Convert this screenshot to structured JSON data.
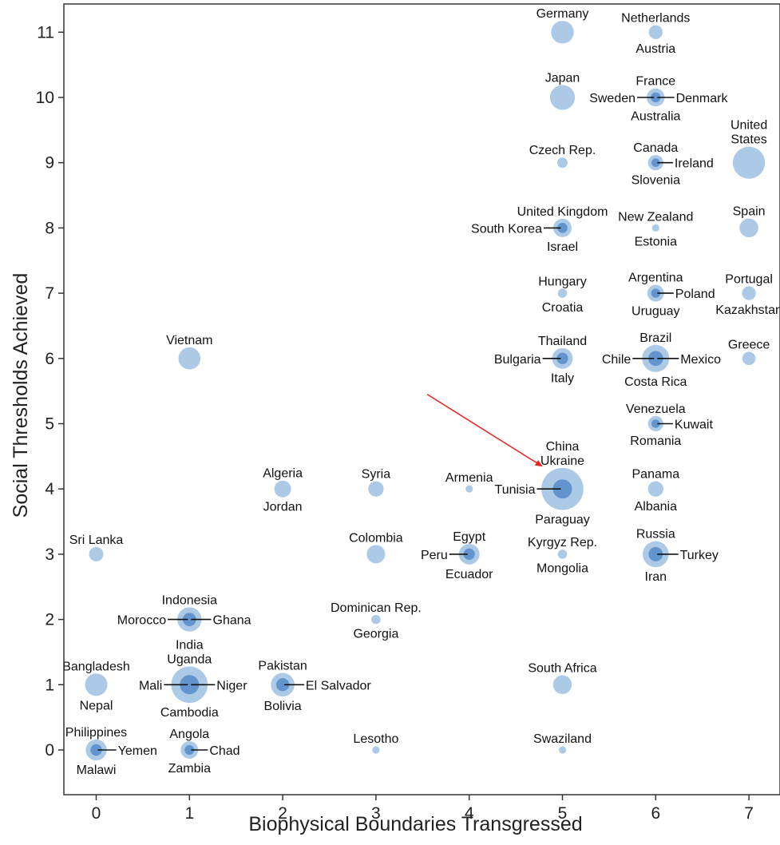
{
  "chart_data": {
    "type": "scatter",
    "title": "",
    "xlabel": "Biophysical Boundaries Transgressed",
    "ylabel": "Social Thresholds Achieved",
    "xlim": [
      -0.35,
      7.35
    ],
    "ylim": [
      -0.45,
      11.45
    ],
    "x_ticks": [
      0,
      1,
      2,
      3,
      4,
      5,
      6,
      7
    ],
    "y_ticks": [
      0,
      1,
      2,
      3,
      4,
      5,
      6,
      7,
      8,
      9,
      10,
      11
    ],
    "grid": false,
    "bubble_color": "#9dbfe2",
    "cluster_color": "#5a8fca",
    "arrow_color": "#e8211e",
    "annotation": {
      "type": "arrow",
      "from": [
        3.55,
        5.45
      ],
      "to": [
        4.78,
        4.35
      ]
    },
    "points": [
      {
        "x": 5,
        "y": 11,
        "size": 3.5,
        "labels": [
          {
            "text": "Germany",
            "pos": "above"
          }
        ]
      },
      {
        "x": 6,
        "y": 11,
        "size": 1.3,
        "labels": [
          {
            "text": "Netherlands",
            "pos": "above"
          },
          {
            "text": "Austria",
            "pos": "below"
          }
        ]
      },
      {
        "x": 5,
        "y": 10,
        "size": 4.2,
        "labels": [
          {
            "text": "Japan",
            "pos": "above"
          }
        ]
      },
      {
        "x": 6,
        "y": 10,
        "size": 2.2,
        "labels": [
          {
            "text": "France",
            "pos": "above"
          },
          {
            "text": "Sweden",
            "pos": "left"
          },
          {
            "text": "Denmark",
            "pos": "right"
          },
          {
            "text": "Australia",
            "pos": "below"
          }
        ]
      },
      {
        "x": 5,
        "y": 9,
        "size": 1.0,
        "labels": [
          {
            "text": "Czech Rep.",
            "pos": "above"
          }
        ]
      },
      {
        "x": 6,
        "y": 9,
        "size": 1.6,
        "labels": [
          {
            "text": "Canada",
            "pos": "above"
          },
          {
            "text": "Ireland",
            "pos": "right"
          },
          {
            "text": "Slovenia",
            "pos": "below"
          }
        ]
      },
      {
        "x": 7,
        "y": 9,
        "size": 7.0,
        "labels": [
          {
            "text": "United",
            "pos": "above2"
          },
          {
            "text": "States",
            "pos": "above"
          }
        ]
      },
      {
        "x": 5,
        "y": 8,
        "size": 2.3,
        "labels": [
          {
            "text": "United Kingdom",
            "pos": "above"
          },
          {
            "text": "South Korea",
            "pos": "left"
          },
          {
            "text": "Israel",
            "pos": "below"
          }
        ]
      },
      {
        "x": 6,
        "y": 8,
        "size": 0.5,
        "labels": [
          {
            "text": "New Zealand",
            "pos": "above"
          },
          {
            "text": "Estonia",
            "pos": "below"
          }
        ]
      },
      {
        "x": 7,
        "y": 8,
        "size": 2.4,
        "labels": [
          {
            "text": "Spain",
            "pos": "above"
          }
        ]
      },
      {
        "x": 5,
        "y": 7,
        "size": 0.8,
        "labels": [
          {
            "text": "Hungary",
            "pos": "above"
          },
          {
            "text": "Croatia",
            "pos": "below"
          }
        ]
      },
      {
        "x": 6,
        "y": 7,
        "size": 1.9,
        "labels": [
          {
            "text": "Argentina",
            "pos": "above"
          },
          {
            "text": "Poland",
            "pos": "right"
          },
          {
            "text": "Uruguay",
            "pos": "below"
          }
        ]
      },
      {
        "x": 7,
        "y": 7,
        "size": 1.3,
        "labels": [
          {
            "text": "Portugal",
            "pos": "above"
          },
          {
            "text": "Kazakhstan",
            "pos": "below"
          }
        ]
      },
      {
        "x": 1,
        "y": 6,
        "size": 3.3,
        "labels": [
          {
            "text": "Vietnam",
            "pos": "above"
          }
        ]
      },
      {
        "x": 5,
        "y": 6,
        "size": 2.9,
        "labels": [
          {
            "text": "Thailand",
            "pos": "above"
          },
          {
            "text": "Bulgaria",
            "pos": "left"
          },
          {
            "text": "Italy",
            "pos": "below"
          }
        ]
      },
      {
        "x": 6,
        "y": 6,
        "size": 5.0,
        "labels": [
          {
            "text": "Brazil",
            "pos": "above"
          },
          {
            "text": "Chile",
            "pos": "left"
          },
          {
            "text": "Mexico",
            "pos": "right"
          },
          {
            "text": "Costa Rica",
            "pos": "below"
          }
        ]
      },
      {
        "x": 7,
        "y": 6,
        "size": 1.2,
        "labels": [
          {
            "text": "Greece",
            "pos": "above"
          }
        ]
      },
      {
        "x": 6,
        "y": 5,
        "size": 1.6,
        "labels": [
          {
            "text": "Venezuela",
            "pos": "above"
          },
          {
            "text": "Kuwait",
            "pos": "right"
          },
          {
            "text": "Romania",
            "pos": "below"
          }
        ]
      },
      {
        "x": 2,
        "y": 4,
        "size": 1.9,
        "labels": [
          {
            "text": "Algeria",
            "pos": "above"
          },
          {
            "text": "Jordan",
            "pos": "below"
          }
        ]
      },
      {
        "x": 3,
        "y": 4,
        "size": 1.6,
        "labels": [
          {
            "text": "Syria",
            "pos": "above"
          }
        ]
      },
      {
        "x": 4,
        "y": 4,
        "size": 0.5,
        "labels": [
          {
            "text": "Armenia",
            "pos": "above"
          }
        ]
      },
      {
        "x": 5,
        "y": 4,
        "size": 12.0,
        "labels": [
          {
            "text": "China",
            "pos": "above2"
          },
          {
            "text": "Ukraine",
            "pos": "above"
          },
          {
            "text": "Tunisia",
            "pos": "left"
          },
          {
            "text": "Paraguay",
            "pos": "below"
          }
        ]
      },
      {
        "x": 6,
        "y": 4,
        "size": 1.6,
        "labels": [
          {
            "text": "Panama",
            "pos": "above"
          },
          {
            "text": "Albania",
            "pos": "below"
          }
        ]
      },
      {
        "x": 0,
        "y": 3,
        "size": 1.4,
        "labels": [
          {
            "text": "Sri Lanka",
            "pos": "above"
          }
        ]
      },
      {
        "x": 3,
        "y": 3,
        "size": 2.3,
        "labels": [
          {
            "text": "Colombia",
            "pos": "above"
          }
        ]
      },
      {
        "x": 4,
        "y": 3,
        "size": 2.9,
        "labels": [
          {
            "text": "Egypt",
            "pos": "above"
          },
          {
            "text": "Peru",
            "pos": "left"
          },
          {
            "text": "Ecuador",
            "pos": "below"
          }
        ]
      },
      {
        "x": 5,
        "y": 3,
        "size": 0.8,
        "labels": [
          {
            "text": "Kyrgyz Rep.",
            "pos": "above"
          },
          {
            "text": "Mongolia",
            "pos": "below"
          }
        ]
      },
      {
        "x": 6,
        "y": 3,
        "size": 4.6,
        "labels": [
          {
            "text": "Russia",
            "pos": "above"
          },
          {
            "text": "Turkey",
            "pos": "right"
          },
          {
            "text": "Iran",
            "pos": "below"
          }
        ]
      },
      {
        "x": 1,
        "y": 2,
        "size": 4.0,
        "labels": [
          {
            "text": "Indonesia",
            "pos": "above"
          },
          {
            "text": "Morocco",
            "pos": "left"
          },
          {
            "text": "Ghana",
            "pos": "right"
          }
        ]
      },
      {
        "x": 3,
        "y": 2,
        "size": 0.8,
        "labels": [
          {
            "text": "Dominican Rep.",
            "pos": "above"
          },
          {
            "text": "Georgia",
            "pos": "below"
          }
        ]
      },
      {
        "x": 0,
        "y": 1,
        "size": 3.4,
        "labels": [
          {
            "text": "Bangladesh",
            "pos": "above"
          },
          {
            "text": "Nepal",
            "pos": "below"
          }
        ]
      },
      {
        "x": 1,
        "y": 1,
        "size": 9.0,
        "labels": [
          {
            "text": "India",
            "pos": "above2"
          },
          {
            "text": "Uganda",
            "pos": "above"
          },
          {
            "text": "Mali",
            "pos": "left"
          },
          {
            "text": "Niger",
            "pos": "right"
          },
          {
            "text": "Cambodia",
            "pos": "below"
          }
        ]
      },
      {
        "x": 2,
        "y": 1,
        "size": 3.8,
        "labels": [
          {
            "text": "Pakistan",
            "pos": "above"
          },
          {
            "text": "El Salvador",
            "pos": "right"
          },
          {
            "text": "Bolivia",
            "pos": "below"
          }
        ]
      },
      {
        "x": 5,
        "y": 1,
        "size": 2.4,
        "labels": [
          {
            "text": "South Africa",
            "pos": "above"
          }
        ]
      },
      {
        "x": 0,
        "y": 0,
        "size": 3.0,
        "labels": [
          {
            "text": "Philippines",
            "pos": "above"
          },
          {
            "text": "Yemen",
            "pos": "right"
          },
          {
            "text": "Malawi",
            "pos": "below"
          }
        ]
      },
      {
        "x": 1,
        "y": 0,
        "size": 2.1,
        "labels": [
          {
            "text": "Angola",
            "pos": "above"
          },
          {
            "text": "Chad",
            "pos": "right"
          },
          {
            "text": "Zambia",
            "pos": "below"
          }
        ]
      },
      {
        "x": 3,
        "y": 0,
        "size": 0.5,
        "labels": [
          {
            "text": "Lesotho",
            "pos": "above"
          }
        ]
      },
      {
        "x": 5,
        "y": 0,
        "size": 0.5,
        "labels": [
          {
            "text": "Swaziland",
            "pos": "above"
          }
        ]
      }
    ]
  }
}
